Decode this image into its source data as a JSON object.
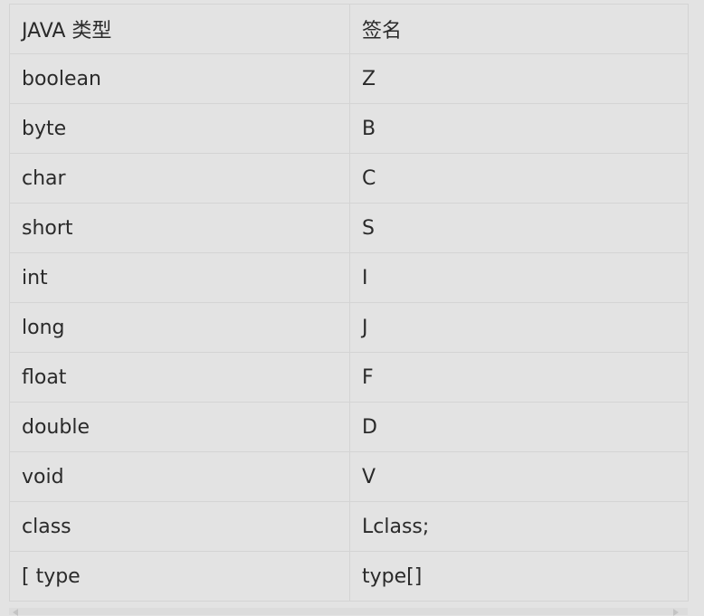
{
  "table": {
    "headers": [
      "JAVA 类型",
      "签名"
    ],
    "rows": [
      [
        "boolean",
        "Z"
      ],
      [
        "byte",
        "B"
      ],
      [
        "char",
        "C"
      ],
      [
        "short",
        "S"
      ],
      [
        "int",
        "I"
      ],
      [
        "long",
        "J"
      ],
      [
        "float",
        "F"
      ],
      [
        "double",
        "D"
      ],
      [
        "void",
        "V"
      ],
      [
        "class",
        "Lclass;"
      ],
      [
        "[ type",
        "type[]"
      ]
    ]
  },
  "scrollbar": {
    "left_icon": "chevron-left-icon",
    "right_icon": "chevron-right-icon"
  }
}
